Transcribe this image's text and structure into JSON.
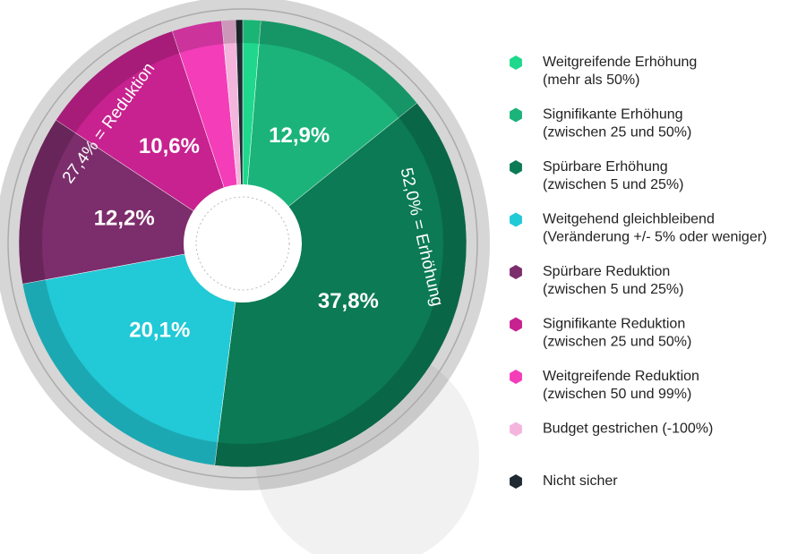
{
  "chart_data": {
    "type": "donut",
    "categories": [
      "Weitgreifende Erhöhung",
      "Signifikante Erhöhung",
      "Spürbare Erhöhung",
      "Weitgehend gleichbleibend",
      "Spürbare Reduktion",
      "Signifikante Reduktion",
      "Weitgreifende Reduktion",
      "Budget gestrichen (-100%)",
      "Nicht sicher"
    ],
    "category_details": [
      "(mehr als 50%)",
      "(zwischen 25 und 50%)",
      "(zwischen 5 und 25%)",
      "(Veränderung +/- 5% oder weniger)",
      "(zwischen 5 und 25%)",
      "(zwischen 25 und 50%)",
      "(zwischen 50 und 99%)",
      null,
      null
    ],
    "values": [
      1.3,
      12.9,
      37.8,
      20.1,
      12.2,
      10.6,
      3.6,
      1.0,
      0.5
    ],
    "value_labels": [
      null,
      "12,9%",
      "37,8%",
      "20,1%",
      "12,2%",
      "10,6%",
      null,
      null,
      null
    ],
    "colors": [
      "#1fd88c",
      "#1bb37a",
      "#0b7a55",
      "#22c9d6",
      "#7c2d6c",
      "#c7228f",
      "#f43db9",
      "#f4b5dd",
      "#1f2a33"
    ],
    "annotations": [
      "52,0% = Erhöhung",
      "27,4% = Reduktion"
    ]
  }
}
